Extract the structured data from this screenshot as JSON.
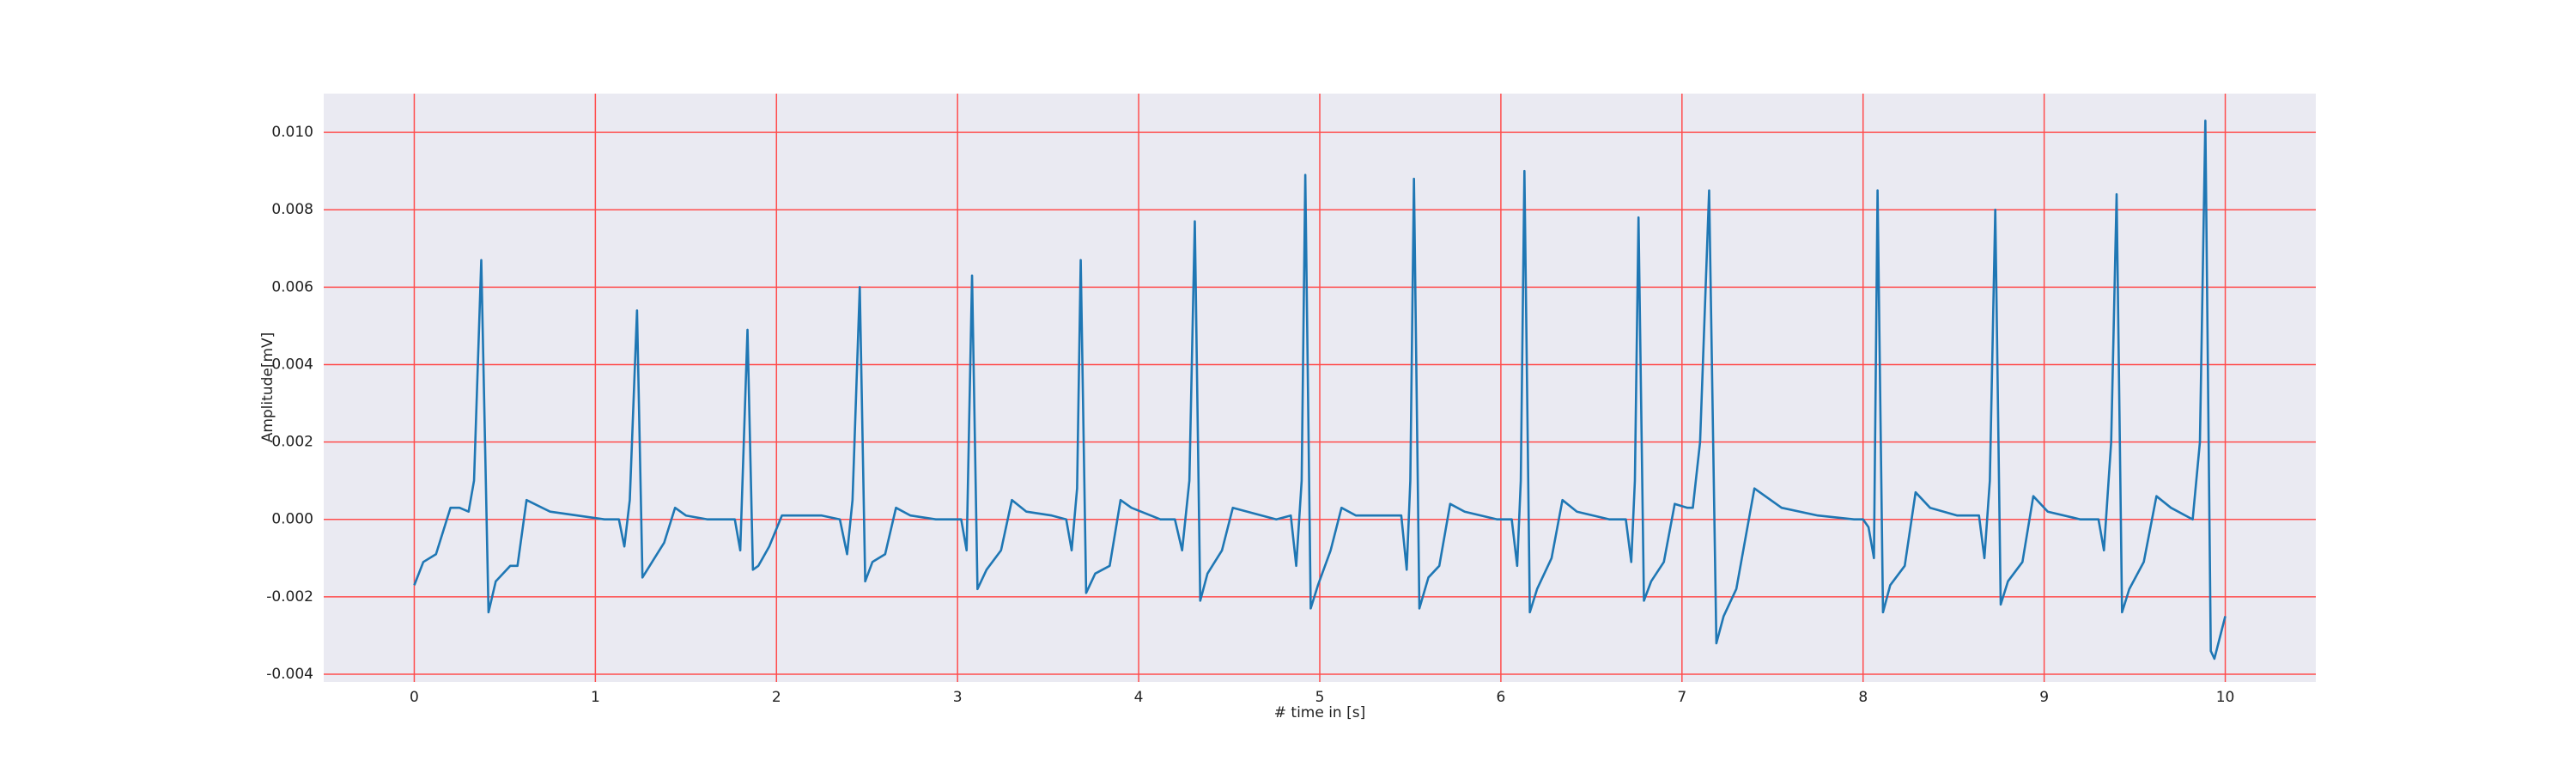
{
  "chart_data": {
    "type": "line",
    "xlabel": "# time in [s]",
    "ylabel": "Amplitude[mV]",
    "color": "#1f77b4",
    "grid": true,
    "grid_color": "#ff4d4d",
    "background": "#eaeaf2",
    "xlim": [
      -0.5,
      10.5
    ],
    "ylim": [
      -0.0042,
      0.011
    ],
    "xticks": [
      0,
      1,
      2,
      3,
      4,
      5,
      6,
      7,
      8,
      9,
      10
    ],
    "yticks": [
      {
        "value": -0.004,
        "label": "-0.004"
      },
      {
        "value": -0.002,
        "label": "-0.002"
      },
      {
        "value": 0,
        "label": "0.000"
      },
      {
        "value": 0.002,
        "label": "0.002"
      },
      {
        "value": 0.004,
        "label": "0.004"
      },
      {
        "value": 0.006,
        "label": "0.006"
      },
      {
        "value": 0.008,
        "label": "0.008"
      },
      {
        "value": 0.01,
        "label": "0.010"
      }
    ],
    "x": [
      0,
      0.05,
      0.12,
      0.2,
      0.25,
      0.3,
      0.33,
      0.37,
      0.41,
      0.45,
      0.53,
      0.57,
      0.62,
      0.75,
      0.9,
      1.05,
      1.13,
      1.16,
      1.19,
      1.23,
      1.26,
      1.3,
      1.38,
      1.44,
      1.5,
      1.62,
      1.72,
      1.77,
      1.8,
      1.84,
      1.87,
      1.9,
      1.96,
      2.03,
      2.1,
      2.25,
      2.35,
      2.39,
      2.42,
      2.46,
      2.49,
      2.53,
      2.6,
      2.66,
      2.74,
      2.88,
      2.98,
      3.02,
      3.05,
      3.08,
      3.11,
      3.16,
      3.24,
      3.3,
      3.38,
      3.52,
      3.6,
      3.63,
      3.66,
      3.68,
      3.71,
      3.76,
      3.84,
      3.9,
      3.96,
      4.12,
      4.2,
      4.24,
      4.28,
      4.31,
      4.34,
      4.38,
      4.46,
      4.52,
      4.6,
      4.76,
      4.84,
      4.87,
      4.9,
      4.92,
      4.95,
      4.99,
      5.06,
      5.12,
      5.2,
      5.38,
      5.45,
      5.48,
      5.5,
      5.52,
      5.55,
      5.6,
      5.66,
      5.72,
      5.8,
      5.98,
      6.06,
      6.09,
      6.11,
      6.13,
      6.16,
      6.2,
      6.28,
      6.34,
      6.42,
      6.6,
      6.69,
      6.72,
      6.74,
      6.76,
      6.79,
      6.83,
      6.9,
      6.96,
      7.03,
      7.06,
      7.1,
      7.15,
      7.19,
      7.23,
      7.3,
      7.4,
      7.55,
      7.75,
      7.95,
      8.0,
      8.03,
      8.06,
      8.08,
      8.11,
      8.15,
      8.23,
      8.29,
      8.37,
      8.52,
      8.64,
      8.67,
      8.7,
      8.73,
      8.76,
      8.8,
      8.88,
      8.94,
      9.02,
      9.2,
      9.3,
      9.33,
      9.37,
      9.4,
      9.43,
      9.47,
      9.55,
      9.62,
      9.7,
      9.78,
      9.82,
      9.86,
      9.89,
      9.92,
      9.94,
      10.0
    ],
    "values": [
      -0.0017,
      -0.0011,
      -0.0009,
      0.0003,
      0.0003,
      0.0002,
      0.001,
      0.0067,
      -0.0024,
      -0.0016,
      -0.0012,
      -0.0012,
      0.0005,
      0.0002,
      0.0001,
      0,
      0,
      -0.0007,
      0.0005,
      0.0054,
      -0.0015,
      -0.0012,
      -0.0006,
      0.0003,
      0.0001,
      0,
      0,
      0,
      -0.0008,
      0.0049,
      -0.0013,
      -0.0012,
      -0.0007,
      0.0001,
      0.0001,
      0.0001,
      0,
      -0.0009,
      0.0005,
      0.006,
      -0.0016,
      -0.0011,
      -0.0009,
      0.0003,
      0.0001,
      0,
      0,
      0,
      -0.0008,
      0.0063,
      -0.0018,
      -0.0013,
      -0.0008,
      0.0005,
      0.0002,
      0.0001,
      0,
      -0.0008,
      0.0008,
      0.0067,
      -0.0019,
      -0.0014,
      -0.0012,
      0.0005,
      0.0003,
      0,
      0,
      -0.0008,
      0.001,
      0.0077,
      -0.0021,
      -0.0014,
      -0.0008,
      0.0003,
      0.0002,
      0,
      0.0001,
      -0.0012,
      0.001,
      0.0089,
      -0.0023,
      -0.0017,
      -0.0008,
      0.0003,
      0.0001,
      0.0001,
      0.0001,
      -0.0013,
      0.001,
      0.0088,
      -0.0023,
      -0.0015,
      -0.0012,
      0.0004,
      0.0002,
      0,
      0,
      -0.0012,
      0.001,
      0.009,
      -0.0024,
      -0.0018,
      -0.001,
      0.0005,
      0.0002,
      0,
      0,
      -0.0011,
      0.001,
      0.0078,
      -0.0021,
      -0.0016,
      -0.0011,
      0.0004,
      0.0003,
      0.0003,
      0.002,
      0.0085,
      -0.0032,
      -0.0025,
      -0.0018,
      0.0008,
      0.0003,
      0.0001,
      0,
      0,
      -0.0002,
      -0.001,
      0.0085,
      -0.0024,
      -0.0017,
      -0.0012,
      0.0007,
      0.0003,
      0.0001,
      0.0001,
      -0.001,
      0.001,
      0.008,
      -0.0022,
      -0.0016,
      -0.0011,
      0.0006,
      0.0002,
      0,
      0,
      -0.0008,
      0.002,
      0.0084,
      -0.0024,
      -0.0018,
      -0.0011,
      0.0006,
      0.0003,
      0.0001,
      0,
      0.002,
      0.0103,
      -0.0034,
      -0.0036,
      -0.0025
    ]
  }
}
